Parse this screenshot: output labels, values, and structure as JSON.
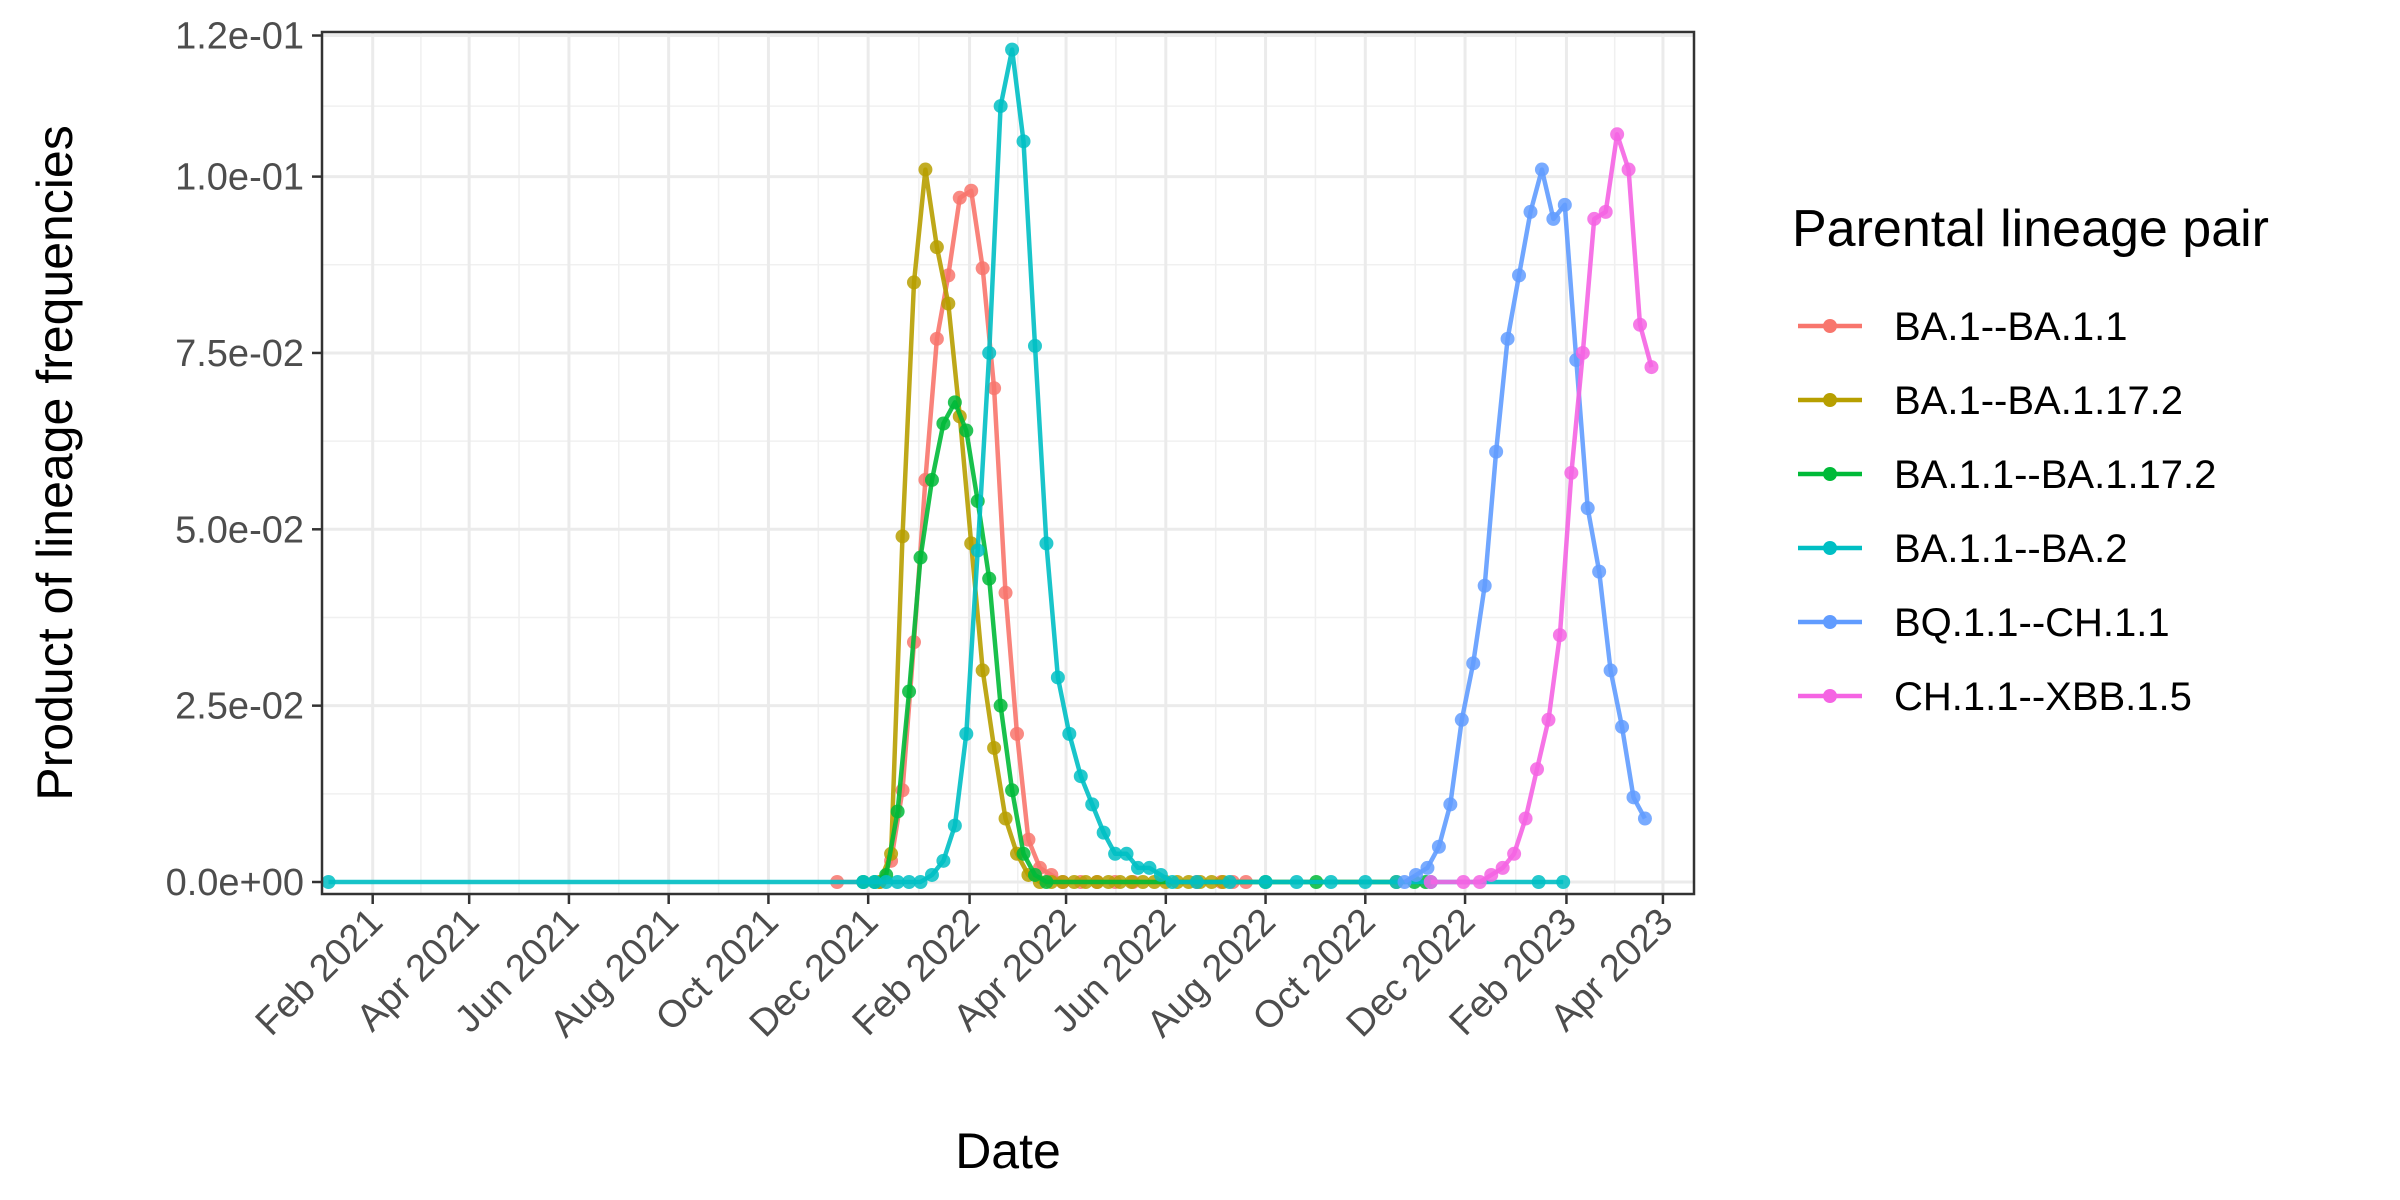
{
  "chart_data": {
    "type": "line",
    "xlabel": "Date",
    "ylabel": "Product of lineage frequencies",
    "x_axis_type": "date",
    "xlim": [
      "2021-01-01",
      "2023-04-20"
    ],
    "ylim": [
      0,
      0.12
    ],
    "x_ticks": [
      {
        "date": "2021-02-01",
        "label": "Feb 2021"
      },
      {
        "date": "2021-04-01",
        "label": "Apr 2021"
      },
      {
        "date": "2021-06-01",
        "label": "Jun 2021"
      },
      {
        "date": "2021-08-01",
        "label": "Aug 2021"
      },
      {
        "date": "2021-10-01",
        "label": "Oct 2021"
      },
      {
        "date": "2021-12-01",
        "label": "Dec 2021"
      },
      {
        "date": "2022-02-01",
        "label": "Feb 2022"
      },
      {
        "date": "2022-04-01",
        "label": "Apr 2022"
      },
      {
        "date": "2022-06-01",
        "label": "Jun 2022"
      },
      {
        "date": "2022-08-01",
        "label": "Aug 2022"
      },
      {
        "date": "2022-10-01",
        "label": "Oct 2022"
      },
      {
        "date": "2022-12-01",
        "label": "Dec 2022"
      },
      {
        "date": "2023-02-01",
        "label": "Feb 2023"
      },
      {
        "date": "2023-04-01",
        "label": "Apr 2023"
      }
    ],
    "y_ticks": [
      {
        "value": 0,
        "label": "0.0e+00"
      },
      {
        "value": 0.025,
        "label": "2.5e-02"
      },
      {
        "value": 0.05,
        "label": "5.0e-02"
      },
      {
        "value": 0.075,
        "label": "7.5e-02"
      },
      {
        "value": 0.1,
        "label": "1.0e-01"
      },
      {
        "value": 0.12,
        "label": "1.2e-01"
      }
    ],
    "grid": true,
    "legend": {
      "title": "Parental lineage pair",
      "position": "right"
    },
    "series": [
      {
        "name": "BA.1--BA.1.1",
        "color": "#F8766D",
        "points": [
          [
            "2021-11-12",
            0
          ],
          [
            "2021-12-08",
            0
          ],
          [
            "2021-12-15",
            0.003
          ],
          [
            "2021-12-22",
            0.013
          ],
          [
            "2021-12-29",
            0.034
          ],
          [
            "2022-01-05",
            0.057
          ],
          [
            "2022-01-12",
            0.077
          ],
          [
            "2022-01-19",
            0.086
          ],
          [
            "2022-01-26",
            0.097
          ],
          [
            "2022-02-02",
            0.098
          ],
          [
            "2022-02-09",
            0.087
          ],
          [
            "2022-02-16",
            0.07
          ],
          [
            "2022-02-23",
            0.041
          ],
          [
            "2022-03-02",
            0.021
          ],
          [
            "2022-03-09",
            0.006
          ],
          [
            "2022-03-16",
            0.002
          ],
          [
            "2022-03-23",
            0.001
          ],
          [
            "2022-03-30",
            0
          ],
          [
            "2022-04-10",
            0
          ],
          [
            "2022-04-20",
            0
          ],
          [
            "2022-05-01",
            0
          ],
          [
            "2022-05-12",
            0
          ],
          [
            "2022-06-20",
            0
          ],
          [
            "2022-07-05",
            0
          ],
          [
            "2022-07-12",
            0
          ],
          [
            "2022-07-20",
            0
          ]
        ]
      },
      {
        "name": "BA.1--BA.1.17.2",
        "color": "#B79F00",
        "points": [
          [
            "2021-12-08",
            0
          ],
          [
            "2021-12-15",
            0.004
          ],
          [
            "2021-12-22",
            0.049
          ],
          [
            "2021-12-29",
            0.085
          ],
          [
            "2022-01-05",
            0.101
          ],
          [
            "2022-01-12",
            0.09
          ],
          [
            "2022-01-19",
            0.082
          ],
          [
            "2022-01-26",
            0.066
          ],
          [
            "2022-02-02",
            0.048
          ],
          [
            "2022-02-09",
            0.03
          ],
          [
            "2022-02-16",
            0.019
          ],
          [
            "2022-02-23",
            0.009
          ],
          [
            "2022-03-02",
            0.004
          ],
          [
            "2022-03-09",
            0.001
          ],
          [
            "2022-03-16",
            0
          ],
          [
            "2022-03-23",
            0
          ],
          [
            "2022-03-30",
            0
          ],
          [
            "2022-04-06",
            0
          ],
          [
            "2022-04-13",
            0
          ],
          [
            "2022-04-20",
            0
          ],
          [
            "2022-04-27",
            0
          ],
          [
            "2022-05-04",
            0
          ],
          [
            "2022-05-11",
            0
          ],
          [
            "2022-05-18",
            0
          ],
          [
            "2022-05-25",
            0
          ],
          [
            "2022-06-01",
            0
          ],
          [
            "2022-06-08",
            0
          ],
          [
            "2022-06-15",
            0
          ],
          [
            "2022-06-22",
            0
          ],
          [
            "2022-06-29",
            0
          ],
          [
            "2022-07-06",
            0
          ],
          [
            "2022-10-20",
            0
          ]
        ]
      },
      {
        "name": "BA.1.1--BA.1.17.2",
        "color": "#00BA38",
        "points": [
          [
            "2021-11-28",
            0
          ],
          [
            "2021-12-05",
            0
          ],
          [
            "2021-12-12",
            0.001
          ],
          [
            "2021-12-19",
            0.01
          ],
          [
            "2021-12-26",
            0.027
          ],
          [
            "2022-01-02",
            0.046
          ],
          [
            "2022-01-09",
            0.057
          ],
          [
            "2022-01-16",
            0.065
          ],
          [
            "2022-01-23",
            0.068
          ],
          [
            "2022-01-30",
            0.064
          ],
          [
            "2022-02-06",
            0.054
          ],
          [
            "2022-02-13",
            0.043
          ],
          [
            "2022-02-20",
            0.025
          ],
          [
            "2022-02-27",
            0.013
          ],
          [
            "2022-03-06",
            0.004
          ],
          [
            "2022-03-13",
            0.001
          ],
          [
            "2022-03-20",
            0
          ],
          [
            "2022-08-01",
            0
          ],
          [
            "2022-09-01",
            0
          ],
          [
            "2022-10-31",
            0
          ],
          [
            "2022-11-07",
            0
          ]
        ]
      },
      {
        "name": "BA.1.1--BA.2",
        "color": "#00BFC4",
        "points": [
          [
            "2021-01-05",
            0
          ],
          [
            "2021-11-28",
            0
          ],
          [
            "2021-12-05",
            0
          ],
          [
            "2021-12-12",
            0
          ],
          [
            "2021-12-19",
            0
          ],
          [
            "2021-12-26",
            0
          ],
          [
            "2022-01-02",
            0
          ],
          [
            "2022-01-09",
            0.001
          ],
          [
            "2022-01-16",
            0.003
          ],
          [
            "2022-01-23",
            0.008
          ],
          [
            "2022-01-30",
            0.021
          ],
          [
            "2022-02-06",
            0.047
          ],
          [
            "2022-02-13",
            0.075
          ],
          [
            "2022-02-20",
            0.11
          ],
          [
            "2022-02-27",
            0.118
          ],
          [
            "2022-03-06",
            0.105
          ],
          [
            "2022-03-13",
            0.076
          ],
          [
            "2022-03-20",
            0.048
          ],
          [
            "2022-03-27",
            0.029
          ],
          [
            "2022-04-03",
            0.021
          ],
          [
            "2022-04-10",
            0.015
          ],
          [
            "2022-04-17",
            0.011
          ],
          [
            "2022-04-24",
            0.007
          ],
          [
            "2022-05-01",
            0.004
          ],
          [
            "2022-05-08",
            0.004
          ],
          [
            "2022-05-15",
            0.002
          ],
          [
            "2022-05-22",
            0.002
          ],
          [
            "2022-05-29",
            0.001
          ],
          [
            "2022-06-05",
            0
          ],
          [
            "2022-06-20",
            0
          ],
          [
            "2022-07-10",
            0
          ],
          [
            "2022-08-01",
            0
          ],
          [
            "2022-08-20",
            0
          ],
          [
            "2022-09-10",
            0
          ],
          [
            "2022-10-01",
            0
          ],
          [
            "2022-10-20",
            0
          ],
          [
            "2022-11-10",
            0
          ],
          [
            "2023-01-15",
            0
          ],
          [
            "2023-01-30",
            0
          ]
        ]
      },
      {
        "name": "BQ.1.1--CH.1.1",
        "color": "#619CFF",
        "points": [
          [
            "2022-10-25",
            0
          ],
          [
            "2022-11-01",
            0.001
          ],
          [
            "2022-11-08",
            0.002
          ],
          [
            "2022-11-15",
            0.005
          ],
          [
            "2022-11-22",
            0.011
          ],
          [
            "2022-11-29",
            0.023
          ],
          [
            "2022-12-06",
            0.031
          ],
          [
            "2022-12-13",
            0.042
          ],
          [
            "2022-12-20",
            0.061
          ],
          [
            "2022-12-27",
            0.077
          ],
          [
            "2023-01-03",
            0.086
          ],
          [
            "2023-01-10",
            0.095
          ],
          [
            "2023-01-17",
            0.101
          ],
          [
            "2023-01-24",
            0.094
          ],
          [
            "2023-01-31",
            0.096
          ],
          [
            "2023-02-07",
            0.074
          ],
          [
            "2023-02-14",
            0.053
          ],
          [
            "2023-02-21",
            0.044
          ],
          [
            "2023-02-28",
            0.03
          ],
          [
            "2023-03-07",
            0.022
          ],
          [
            "2023-03-14",
            0.012
          ],
          [
            "2023-03-21",
            0.009
          ]
        ]
      },
      {
        "name": "CH.1.1--XBB.1.5",
        "color": "#F564E3",
        "points": [
          [
            "2022-11-10",
            0
          ],
          [
            "2022-11-30",
            0
          ],
          [
            "2022-12-10",
            0
          ],
          [
            "2022-12-17",
            0.001
          ],
          [
            "2022-12-24",
            0.002
          ],
          [
            "2022-12-31",
            0.004
          ],
          [
            "2023-01-07",
            0.009
          ],
          [
            "2023-01-14",
            0.016
          ],
          [
            "2023-01-21",
            0.023
          ],
          [
            "2023-01-28",
            0.035
          ],
          [
            "2023-02-04",
            0.058
          ],
          [
            "2023-02-11",
            0.075
          ],
          [
            "2023-02-18",
            0.094
          ],
          [
            "2023-02-25",
            0.095
          ],
          [
            "2023-03-04",
            0.106
          ],
          [
            "2023-03-11",
            0.101
          ],
          [
            "2023-03-18",
            0.079
          ],
          [
            "2023-03-25",
            0.073
          ]
        ]
      }
    ]
  }
}
